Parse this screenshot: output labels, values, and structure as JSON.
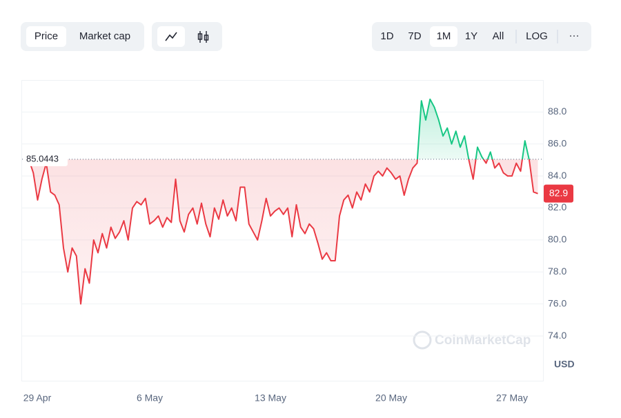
{
  "controls": {
    "metric": [
      "Price",
      "Market cap"
    ],
    "ranges": [
      "1D",
      "7D",
      "1M",
      "1Y",
      "All"
    ],
    "log": "LOG",
    "more": "···",
    "watermark": "CoinMarketCap",
    "currency": "USD"
  },
  "chart_data": {
    "type": "line",
    "categories": [
      "29 Apr",
      null,
      null,
      null,
      null,
      null,
      null,
      null,
      null,
      null,
      null,
      null,
      null,
      null,
      null,
      null,
      null,
      null,
      null,
      null,
      null,
      null,
      null,
      null,
      null,
      null,
      null,
      null,
      "6 May",
      null,
      null,
      null,
      null,
      null,
      null,
      null,
      null,
      null,
      null,
      null,
      null,
      null,
      null,
      null,
      null,
      null,
      null,
      null,
      null,
      null,
      null,
      null,
      null,
      null,
      null,
      null,
      "13 May",
      null,
      null,
      null,
      null,
      null,
      null,
      null,
      null,
      null,
      null,
      null,
      null,
      null,
      null,
      null,
      null,
      null,
      null,
      null,
      null,
      null,
      null,
      null,
      null,
      null,
      null,
      null,
      "20 May",
      null,
      null,
      null,
      null,
      null,
      null,
      null,
      null,
      null,
      null,
      null,
      null,
      null,
      null,
      null,
      null,
      null,
      null,
      null,
      null,
      null,
      null,
      null,
      null,
      null,
      null,
      null,
      "27 May",
      null,
      null,
      null,
      null,
      null,
      null
    ],
    "values": [
      85.0,
      84.2,
      82.5,
      83.8,
      84.8,
      83.0,
      82.8,
      82.2,
      79.5,
      78.0,
      79.5,
      79.0,
      76.0,
      78.2,
      77.3,
      80.0,
      79.2,
      80.4,
      79.5,
      80.8,
      80.1,
      80.5,
      81.2,
      80.0,
      82.0,
      82.4,
      82.2,
      82.6,
      81.0,
      81.2,
      81.5,
      80.8,
      81.4,
      81.1,
      83.8,
      81.2,
      80.5,
      81.6,
      82.0,
      81.0,
      82.3,
      81.0,
      80.2,
      82.0,
      81.3,
      82.5,
      81.5,
      82.0,
      81.2,
      83.3,
      83.3,
      81.0,
      80.5,
      80.0,
      81.2,
      82.6,
      81.5,
      81.8,
      82.0,
      81.6,
      82.0,
      80.2,
      82.2,
      80.8,
      80.4,
      81.0,
      80.7,
      79.8,
      78.8,
      79.2,
      78.7,
      78.7,
      81.5,
      82.5,
      82.8,
      82.0,
      83.0,
      82.5,
      83.5,
      83.0,
      84.0,
      84.3,
      84.0,
      84.5,
      84.2,
      83.8,
      84.0,
      82.8,
      83.8,
      84.5,
      84.8,
      88.7,
      87.5,
      88.8,
      88.3,
      87.5,
      86.5,
      87.0,
      86.0,
      86.8,
      85.8,
      86.5,
      85.0,
      83.8,
      85.8,
      85.2,
      84.8,
      85.5,
      84.5,
      84.8,
      84.2,
      84.0,
      84.0,
      84.8,
      84.3,
      86.2,
      85.0,
      83.0,
      82.9
    ],
    "baseline": 85.0443,
    "colors": {
      "up": "#16c784",
      "down": "#ea3943"
    },
    "ylim": [
      71.2,
      90.0
    ],
    "yticks": [
      {
        "value": 74,
        "label": "74.0"
      },
      {
        "value": 76,
        "label": "76.0"
      },
      {
        "value": 78,
        "label": "78.0"
      },
      {
        "value": 80,
        "label": "80.0"
      },
      {
        "value": 82,
        "label": "82.0"
      },
      {
        "value": 84,
        "label": "84.0"
      },
      {
        "value": 86,
        "label": "86.0"
      },
      {
        "value": 88,
        "label": "88.0"
      }
    ],
    "grid": true
  }
}
